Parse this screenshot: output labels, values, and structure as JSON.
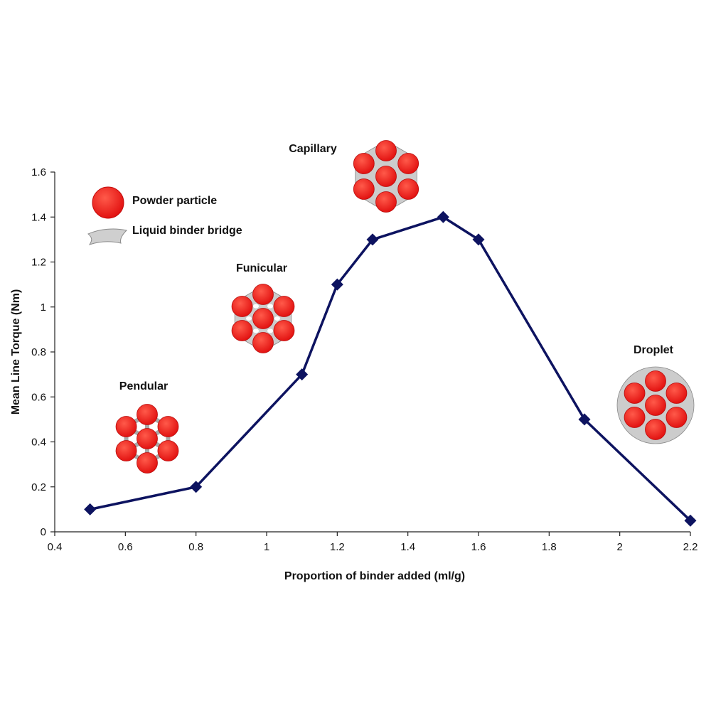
{
  "colors": {
    "series": "#0d1360",
    "particle": "#ee1111",
    "particle_stroke": "#b80c0c",
    "binder": "#cccccc",
    "binder_stroke": "#888888",
    "axis": "#222222",
    "background": "#ffffff"
  },
  "chart_data": {
    "type": "line",
    "title": "",
    "xlabel": "Proportion of binder added (ml/g)",
    "ylabel": "Mean Line Torque (Nm)",
    "xlim": [
      0.4,
      2.2
    ],
    "ylim": [
      0,
      1.6
    ],
    "grid": false,
    "x_ticks": [
      0.4,
      0.6,
      0.8,
      1.0,
      1.2,
      1.4,
      1.6,
      1.8,
      2.0,
      2.2
    ],
    "x_tick_labels": [
      "0.4",
      "0.6",
      "0.8",
      "1",
      "1.2",
      "1.4",
      "1.6",
      "1.8",
      "2",
      "2.2"
    ],
    "y_ticks": [
      0,
      0.2,
      0.4,
      0.6,
      0.8,
      1.0,
      1.2,
      1.4,
      1.6
    ],
    "y_tick_labels": [
      "0",
      "0.2",
      "0.4",
      "0.6",
      "0.8",
      "1",
      "1.2",
      "1.4",
      "1.6"
    ],
    "series": [
      {
        "name": "Mean line torque",
        "marker": "diamond",
        "x": [
          0.5,
          0.8,
          1.1,
          1.2,
          1.3,
          1.5,
          1.6,
          1.9,
          2.2
        ],
        "y": [
          0.1,
          0.2,
          0.7,
          1.1,
          1.3,
          1.4,
          1.3,
          0.5,
          0.05
        ]
      }
    ],
    "legend": {
      "placement": "top-left",
      "items": [
        {
          "label": "Powder particle",
          "icon": "powder-particle-icon"
        },
        {
          "label": "Liquid binder bridge",
          "icon": "liquid-binder-bridge-icon"
        }
      ]
    },
    "annotations": [
      {
        "label": "Pendular",
        "icon": "pendular-cluster-icon"
      },
      {
        "label": "Funicular",
        "icon": "funicular-cluster-icon"
      },
      {
        "label": "Capillary",
        "icon": "capillary-cluster-icon"
      },
      {
        "label": "Droplet",
        "icon": "droplet-cluster-icon"
      }
    ]
  }
}
